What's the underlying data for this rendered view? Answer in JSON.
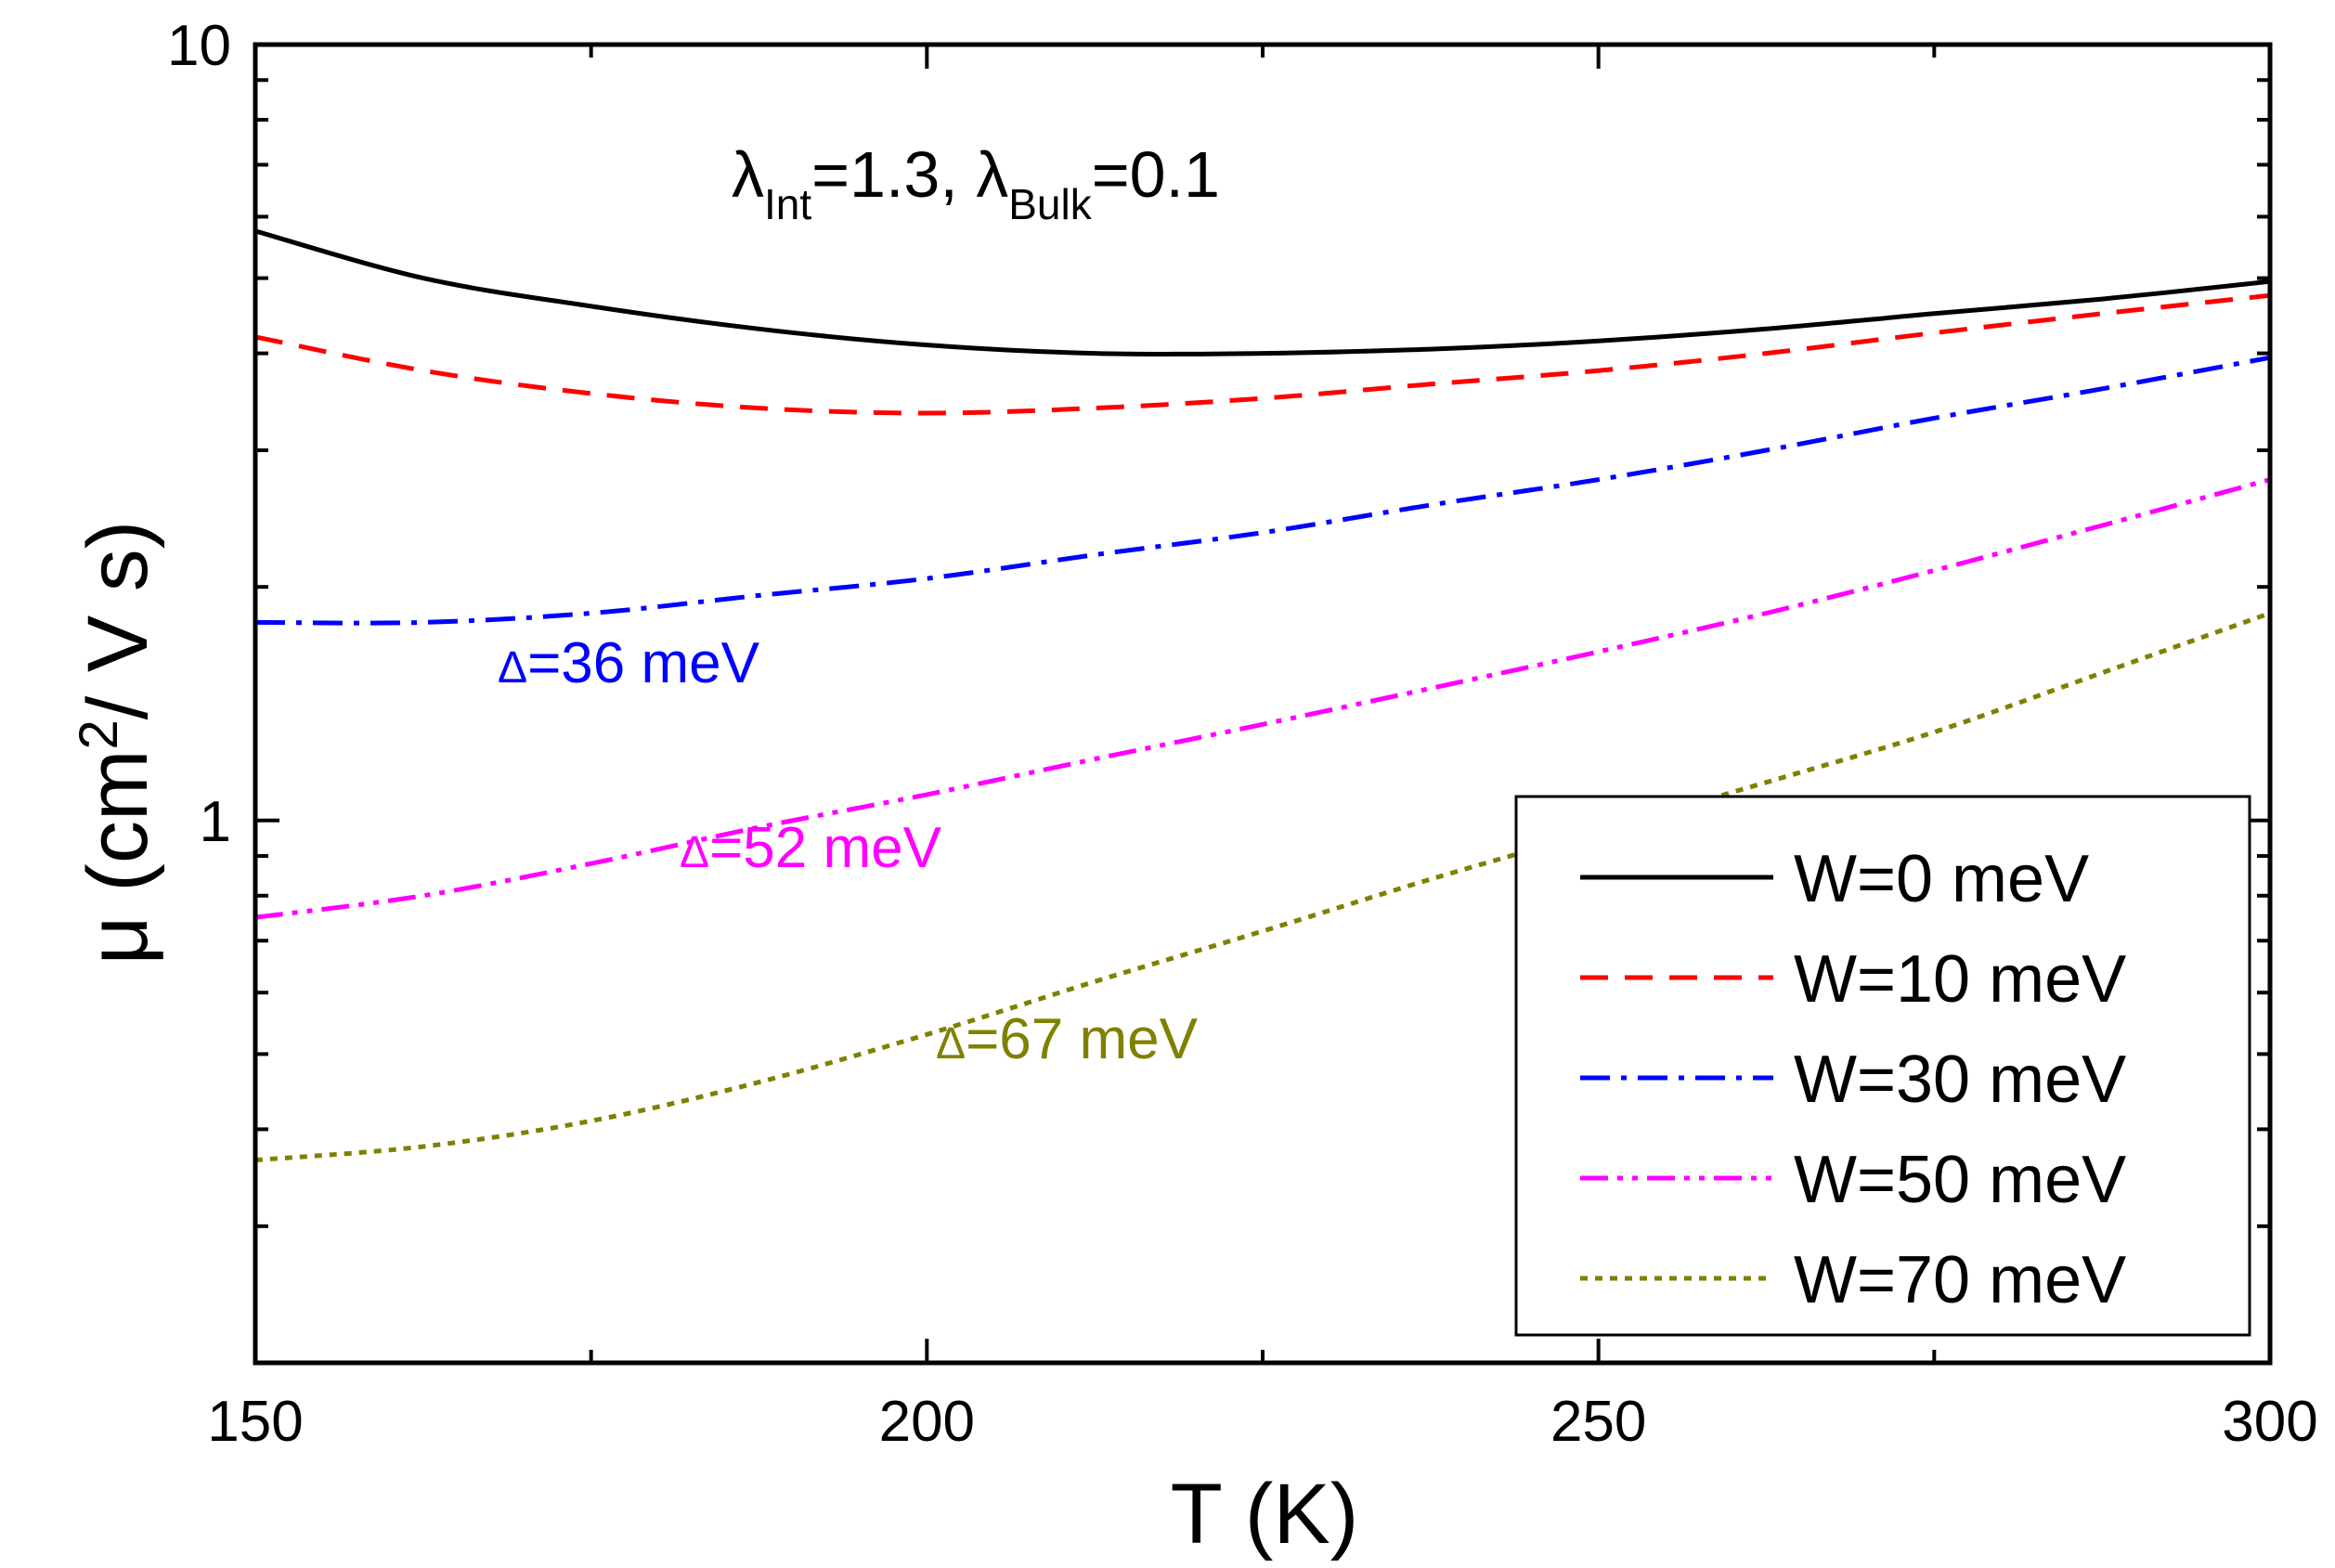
{
  "chart_data": {
    "type": "line",
    "title": "",
    "xlabel": "T (K)",
    "ylabel_parts": {
      "base": "μ (cm",
      "sup": "2",
      "rest": "/ V s)"
    },
    "xlim": [
      150,
      300
    ],
    "ylim": [
      0.2,
      10
    ],
    "yscale": "log",
    "x_ticks": [
      150,
      200,
      250,
      300
    ],
    "x_tick_labels": [
      "150",
      "200",
      "250",
      "300"
    ],
    "x_minor_ticks": [
      175,
      225,
      275
    ],
    "y_ticks": [
      1,
      10
    ],
    "y_tick_labels": [
      "1",
      "10"
    ],
    "y_minor_ticks": [
      0.3,
      0.4,
      0.5,
      0.6,
      0.7,
      0.8,
      0.9,
      2,
      3,
      4,
      5,
      6,
      7,
      8,
      9
    ],
    "x": [
      150,
      162.5,
      175,
      187.5,
      200,
      212.5,
      225,
      237.5,
      250,
      262.5,
      275,
      287.5,
      300
    ],
    "series": [
      {
        "name": "W=0 meV",
        "color": "#000000",
        "dash": "",
        "values": [
          5.75,
          5.0,
          4.6,
          4.3,
          4.1,
          4.0,
          4.0,
          4.05,
          4.15,
          4.3,
          4.5,
          4.7,
          4.95
        ]
      },
      {
        "name": "W=10 meV",
        "color": "#ff0000",
        "dash": "30,18",
        "values": [
          4.2,
          3.8,
          3.55,
          3.4,
          3.35,
          3.4,
          3.5,
          3.65,
          3.8,
          4.0,
          4.25,
          4.5,
          4.75
        ]
      },
      {
        "name": "W=30 meV",
        "color": "#0000ff",
        "dash": "32,12,6,12",
        "values": [
          1.8,
          1.8,
          1.85,
          1.95,
          2.05,
          2.2,
          2.35,
          2.55,
          2.75,
          3.0,
          3.3,
          3.6,
          3.95
        ]
      },
      {
        "name": "W=50 meV",
        "color": "#ff00ff",
        "dash": "30,10,6,10,6,10",
        "values": [
          0.75,
          0.8,
          0.88,
          0.98,
          1.08,
          1.2,
          1.33,
          1.48,
          1.65,
          1.85,
          2.1,
          2.4,
          2.75
        ]
      },
      {
        "name": "W=70 meV",
        "color": "#808000",
        "dash": "8,8",
        "values": [
          0.365,
          0.38,
          0.41,
          0.46,
          0.53,
          0.62,
          0.72,
          0.84,
          0.97,
          1.12,
          1.3,
          1.55,
          1.85
        ]
      }
    ],
    "parameter_annotation": {
      "lambda": "λ",
      "sub_int": "Int",
      "value_1": "=1.3, ",
      "sub_bulk": "Bulk",
      "value_2": "=0.1"
    },
    "annotations": [
      {
        "delta": "Δ",
        "text": "=36 meV",
        "color": "#0000ff"
      },
      {
        "delta": "Δ",
        "text": "=52 meV",
        "color": "#ff00ff"
      },
      {
        "delta": "Δ",
        "text": "=67 meV",
        "color": "#808000"
      }
    ],
    "legend_position": "bottom-right"
  }
}
